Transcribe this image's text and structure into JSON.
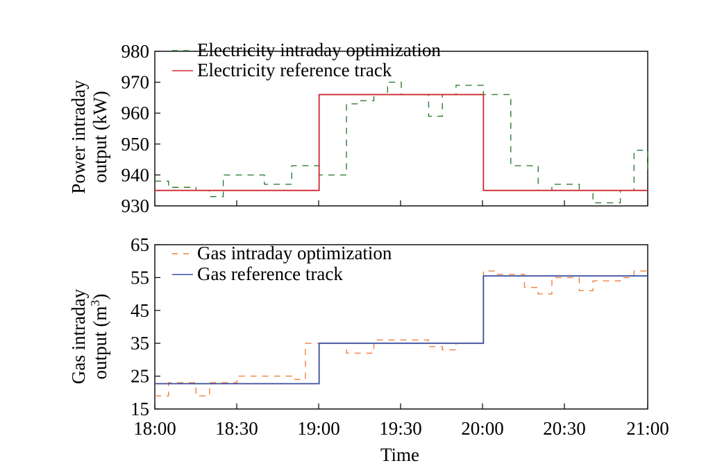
{
  "chart_data": [
    {
      "type": "line",
      "ylabel_lines": [
        "Power intraday",
        "output (kW)"
      ],
      "ylim": [
        930,
        980
      ],
      "yticks": [
        930,
        940,
        950,
        960,
        970,
        980
      ],
      "xlim": [
        0,
        180
      ],
      "series": [
        {
          "name": "Electricity intraday optimization",
          "style": "dashed",
          "color": "#2e7d32",
          "x": [
            0,
            5,
            10,
            15,
            20,
            25,
            30,
            35,
            40,
            45,
            50,
            55,
            60,
            65,
            70,
            75,
            80,
            85,
            90,
            95,
            100,
            105,
            110,
            115,
            120,
            125,
            130,
            135,
            140,
            145,
            150,
            155,
            160,
            165,
            170,
            175,
            180
          ],
          "y": [
            938,
            936,
            936,
            935,
            933,
            940,
            940,
            940,
            937,
            937,
            943,
            943,
            940,
            940,
            963,
            964,
            966,
            970,
            966,
            966,
            959,
            966,
            969,
            969,
            966,
            966,
            943,
            943,
            935,
            937,
            937,
            935,
            931,
            931,
            935,
            948,
            940
          ]
        },
        {
          "name": "Electricity reference track",
          "style": "solid",
          "color": "#d0282e",
          "x": [
            0,
            60,
            60,
            120,
            120,
            180
          ],
          "y": [
            935,
            935,
            966,
            966,
            935,
            935
          ]
        }
      ]
    },
    {
      "type": "line",
      "ylabel_lines": [
        "Gas intraday",
        "output (m",
        "3",
        ")"
      ],
      "ylim": [
        15,
        65
      ],
      "yticks": [
        15,
        25,
        35,
        45,
        55,
        65
      ],
      "xlim": [
        0,
        180
      ],
      "xlabel": "Time",
      "xticks": [
        "18:00",
        "18:30",
        "19:00",
        "19:30",
        "20:00",
        "20:30",
        "21:00"
      ],
      "series": [
        {
          "name": "Gas intraday optimization",
          "style": "dashed",
          "color": "#f07f3c",
          "x": [
            0,
            5,
            10,
            15,
            20,
            25,
            30,
            35,
            40,
            45,
            50,
            55,
            60,
            65,
            70,
            75,
            80,
            85,
            90,
            95,
            100,
            105,
            110,
            115,
            120,
            125,
            130,
            135,
            140,
            145,
            150,
            155,
            160,
            165,
            170,
            175,
            180
          ],
          "y": [
            19,
            23,
            23,
            19,
            23,
            23,
            25,
            25,
            25,
            25,
            24,
            35,
            35,
            35,
            32,
            32,
            36,
            36,
            36,
            36,
            34,
            33,
            35,
            35,
            57,
            56,
            56,
            52,
            50,
            55,
            55,
            51,
            54,
            54,
            55,
            57,
            57
          ]
        },
        {
          "name": "Gas reference track",
          "style": "solid",
          "color": "#3a4ba0",
          "x": [
            0,
            60,
            60,
            120,
            120,
            180
          ],
          "y": [
            22.7,
            22.7,
            35,
            35,
            55.5,
            55.5
          ]
        }
      ]
    }
  ]
}
